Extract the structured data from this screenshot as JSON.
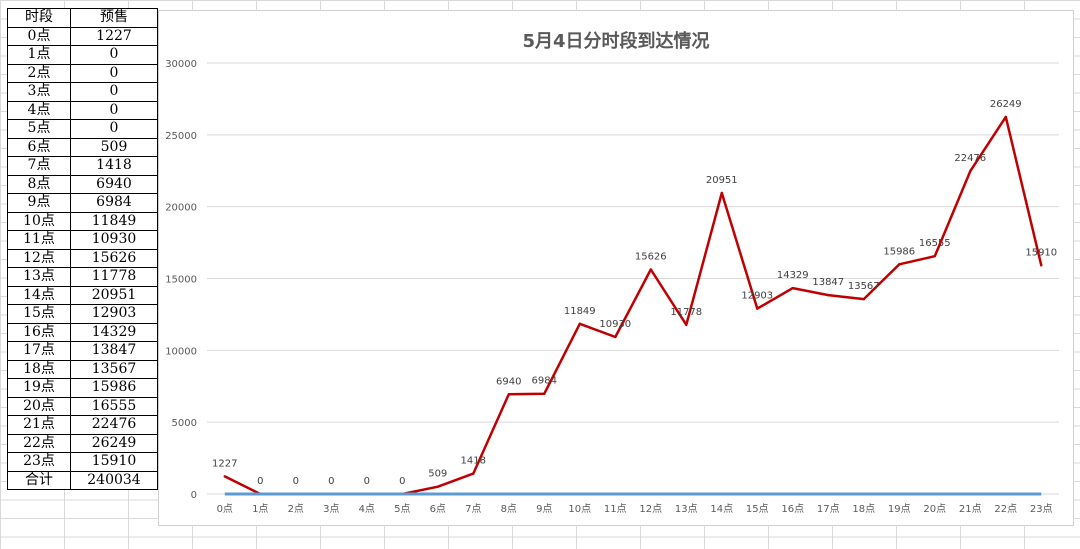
{
  "table": {
    "headers": [
      "时段",
      "预售"
    ],
    "rows": [
      [
        "0点",
        "1227"
      ],
      [
        "1点",
        "0"
      ],
      [
        "2点",
        "0"
      ],
      [
        "3点",
        "0"
      ],
      [
        "4点",
        "0"
      ],
      [
        "5点",
        "0"
      ],
      [
        "6点",
        "509"
      ],
      [
        "7点",
        "1418"
      ],
      [
        "8点",
        "6940"
      ],
      [
        "9点",
        "6984"
      ],
      [
        "10点",
        "11849"
      ],
      [
        "11点",
        "10930"
      ],
      [
        "12点",
        "15626"
      ],
      [
        "13点",
        "11778"
      ],
      [
        "14点",
        "20951"
      ],
      [
        "15点",
        "12903"
      ],
      [
        "16点",
        "14329"
      ],
      [
        "17点",
        "13847"
      ],
      [
        "18点",
        "13567"
      ],
      [
        "19点",
        "15986"
      ],
      [
        "20点",
        "16555"
      ],
      [
        "21点",
        "22476"
      ],
      [
        "22点",
        "26249"
      ],
      [
        "23点",
        "15910"
      ]
    ],
    "total": [
      "合计",
      "240034"
    ]
  },
  "chart_data": {
    "type": "line",
    "title": "5月4日分时段到达情况",
    "categories": [
      "0点",
      "1点",
      "2点",
      "3点",
      "4点",
      "5点",
      "6点",
      "7点",
      "8点",
      "9点",
      "10点",
      "11点",
      "12点",
      "13点",
      "14点",
      "15点",
      "16点",
      "17点",
      "18点",
      "19点",
      "20点",
      "21点",
      "22点",
      "23点"
    ],
    "series": [
      {
        "values": [
          1227,
          0,
          0,
          0,
          0,
          0,
          509,
          1418,
          6940,
          6984,
          11849,
          10930,
          15626,
          11778,
          20951,
          12903,
          14329,
          13847,
          13567,
          15986,
          16555,
          22476,
          26249,
          15910
        ],
        "color": "#c00000"
      },
      {
        "values": [
          0,
          0,
          0,
          0,
          0,
          0,
          0,
          0,
          0,
          0,
          0,
          0,
          0,
          0,
          0,
          0,
          0,
          0,
          0,
          0,
          0,
          0,
          0,
          0
        ],
        "color": "#5b9bd5"
      }
    ],
    "y_ticks": [
      "0",
      "5000",
      "10000",
      "15000",
      "20000",
      "25000",
      "30000"
    ],
    "ylim": [
      0,
      30000
    ],
    "grid": true,
    "data_labels": true
  }
}
